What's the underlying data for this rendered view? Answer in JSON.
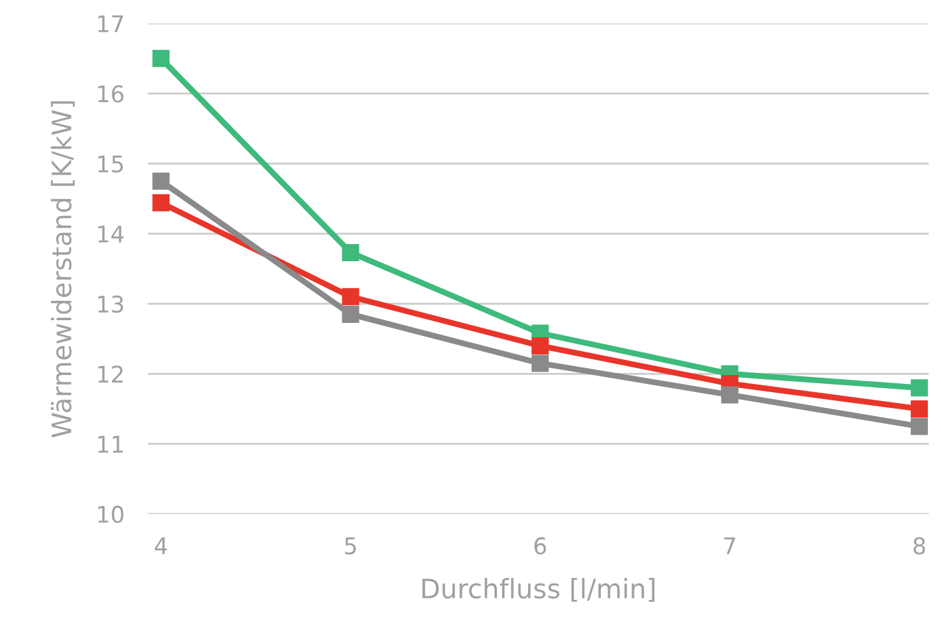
{
  "chart_data": {
    "type": "line",
    "xlabel": "Durchfluss [l/min]",
    "ylabel": "Wärmewiderstand [K/kW]",
    "x": [
      4,
      5,
      6,
      7,
      8
    ],
    "series": [
      {
        "color": "#3dba7c",
        "values": [
          16.5,
          13.73,
          12.58,
          12.0,
          11.8
        ]
      },
      {
        "color": "#e8352a",
        "values": [
          14.44,
          13.1,
          12.4,
          11.86,
          11.5
        ]
      },
      {
        "color": "#8a8a8a",
        "values": [
          14.75,
          12.85,
          12.15,
          11.7,
          11.25
        ]
      }
    ],
    "xlim": [
      3.93,
      8.05
    ],
    "ylim": [
      10,
      17
    ],
    "xticks": [
      4,
      5,
      6,
      7,
      8
    ],
    "yticks": [
      10,
      11,
      12,
      13,
      14,
      15,
      16,
      17
    ],
    "grid": "y",
    "marker": "square",
    "line_style": "solid",
    "legend": false
  }
}
